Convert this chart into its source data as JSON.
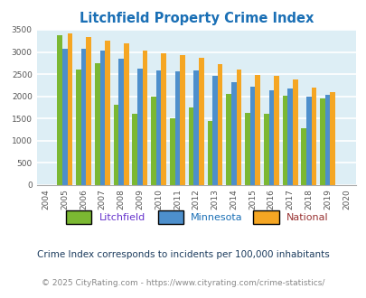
{
  "title": "Litchfield Property Crime Index",
  "years": [
    2004,
    2005,
    2006,
    2007,
    2008,
    2009,
    2010,
    2011,
    2012,
    2013,
    2014,
    2015,
    2016,
    2017,
    2018,
    2019,
    2020
  ],
  "litchfield": [
    0,
    3380,
    2600,
    2750,
    1800,
    1600,
    2000,
    1500,
    1750,
    1430,
    2050,
    1630,
    1600,
    2010,
    1270,
    1940,
    0
  ],
  "minnesota": [
    0,
    3080,
    3080,
    3040,
    2850,
    2630,
    2580,
    2560,
    2580,
    2460,
    2310,
    2220,
    2130,
    2180,
    2000,
    2030,
    0
  ],
  "national": [
    0,
    3420,
    3340,
    3260,
    3200,
    3040,
    2960,
    2920,
    2860,
    2730,
    2600,
    2490,
    2460,
    2370,
    2200,
    2090,
    0
  ],
  "litchfield_color": "#7bb832",
  "minnesota_color": "#4d8fcc",
  "national_color": "#f5a623",
  "litchfield_label_color": "#6633cc",
  "minnesota_label_color": "#1a6fb5",
  "national_label_color": "#993333",
  "ylim": [
    0,
    3500
  ],
  "yticks": [
    0,
    500,
    1000,
    1500,
    2000,
    2500,
    3000,
    3500
  ],
  "background_color": "#ddeef5",
  "grid_color": "#ffffff",
  "title_color": "#1a6fb5",
  "subtitle": "Crime Index corresponds to incidents per 100,000 inhabitants",
  "footer": "© 2025 CityRating.com - https://www.cityrating.com/crime-statistics/",
  "subtitle_color": "#1a3a5c",
  "footer_color": "#888888",
  "footer_url_color": "#4d8fcc"
}
